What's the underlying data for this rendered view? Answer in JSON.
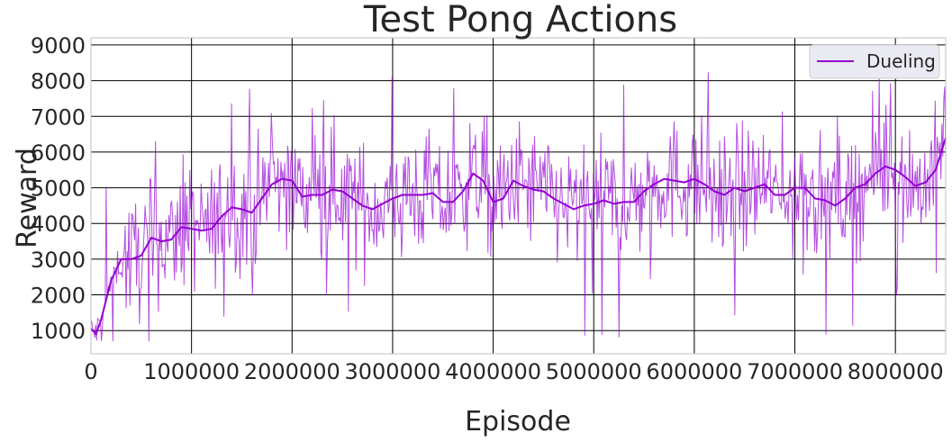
{
  "chart_data": {
    "type": "line",
    "title": "Test Pong Actions",
    "xlabel": "Episode",
    "ylabel": "Reward",
    "xlim": [
      0,
      8500000
    ],
    "ylim": [
      350,
      9200
    ],
    "xticks": [
      0,
      1000000,
      2000000,
      3000000,
      4000000,
      5000000,
      6000000,
      7000000,
      8000000
    ],
    "yticks": [
      1000,
      2000,
      3000,
      4000,
      5000,
      6000,
      7000,
      8000,
      9000
    ],
    "xtick_labels": [
      "0",
      "1000000",
      "2000000",
      "3000000",
      "4000000",
      "5000000",
      "6000000",
      "7000000",
      "8000000"
    ],
    "ytick_labels": [
      "1000",
      "2000",
      "3000",
      "4000",
      "5000",
      "6000",
      "7000",
      "8000",
      "9000"
    ],
    "grid": true,
    "legend": {
      "position": "top-right",
      "entries": [
        "Dueling"
      ]
    },
    "series": [
      {
        "name": "Dueling",
        "color": "#9400d3",
        "smoothed": {
          "x": [
            0,
            50000,
            100000,
            200000,
            300000,
            400000,
            500000,
            600000,
            700000,
            800000,
            900000,
            1000000,
            1100000,
            1200000,
            1300000,
            1400000,
            1500000,
            1600000,
            1700000,
            1800000,
            1900000,
            2000000,
            2100000,
            2200000,
            2300000,
            2400000,
            2500000,
            2600000,
            2700000,
            2800000,
            2900000,
            3000000,
            3100000,
            3200000,
            3300000,
            3400000,
            3500000,
            3600000,
            3700000,
            3800000,
            3900000,
            4000000,
            4100000,
            4200000,
            4300000,
            4400000,
            4500000,
            4600000,
            4700000,
            4800000,
            4900000,
            5000000,
            5100000,
            5200000,
            5300000,
            5400000,
            5500000,
            5600000,
            5700000,
            5800000,
            5900000,
            6000000,
            6100000,
            6200000,
            6300000,
            6400000,
            6500000,
            6600000,
            6700000,
            6800000,
            6900000,
            7000000,
            7100000,
            7200000,
            7300000,
            7400000,
            7500000,
            7600000,
            7700000,
            7800000,
            7900000,
            8000000,
            8100000,
            8200000,
            8300000,
            8400000,
            8500000
          ],
          "y": [
            1050,
            900,
            1300,
            2400,
            3000,
            3000,
            3100,
            3600,
            3500,
            3550,
            3900,
            3850,
            3800,
            3850,
            4200,
            4450,
            4400,
            4300,
            4700,
            5100,
            5250,
            5200,
            4750,
            4800,
            4800,
            4950,
            4900,
            4700,
            4500,
            4400,
            4550,
            4700,
            4800,
            4800,
            4800,
            4850,
            4600,
            4600,
            4900,
            5400,
            5200,
            4600,
            4700,
            5200,
            5050,
            4950,
            4900,
            4700,
            4550,
            4400,
            4500,
            4550,
            4650,
            4550,
            4600,
            4600,
            4900,
            5100,
            5250,
            5200,
            5150,
            5250,
            5100,
            4900,
            4800,
            5000,
            4900,
            5000,
            5100,
            4800,
            4800,
            5000,
            5000,
            4700,
            4650,
            4500,
            4700,
            5000,
            5100,
            5400,
            5600,
            5500,
            5300,
            5050,
            5150,
            5500,
            6400
          ]
        }
      }
    ]
  }
}
